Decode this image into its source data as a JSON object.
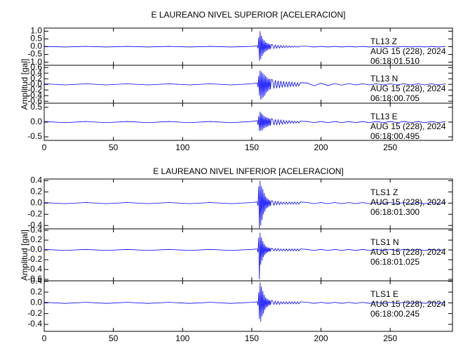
{
  "chart_data": [
    {
      "type": "line",
      "title": "E LAUREANO NIVEL SUPERIOR [ACELERACION]",
      "ylabel": "Amplitud [gal]",
      "xlim": [
        0,
        295
      ],
      "xticks": [
        0,
        50,
        100,
        150,
        200,
        250
      ],
      "x": [
        0,
        15,
        30,
        45,
        60,
        75,
        90,
        105,
        120,
        135,
        150,
        154,
        154.5,
        155,
        155.5,
        156,
        156.5,
        157,
        157.5,
        158,
        158.5,
        159,
        159.5,
        160,
        160.5,
        161,
        161.5,
        162,
        162.5,
        163,
        163.5,
        164,
        165,
        166,
        167,
        168,
        169,
        170,
        171,
        172,
        173,
        174,
        175,
        176,
        177,
        178,
        179,
        180,
        181,
        182,
        183,
        184,
        185,
        190,
        195,
        200,
        205,
        210,
        215,
        220,
        225,
        230,
        235,
        240,
        245,
        250,
        255,
        260,
        265,
        270,
        275,
        280,
        285,
        290
      ],
      "panels": [
        {
          "ylim": [
            -1.2,
            1.2
          ],
          "yticks": [
            {
              "value": 1,
              "label": "1.0"
            },
            0.5,
            {
              "value": 0,
              "label": "0.0"
            },
            -0.5,
            {
              "value": -1,
              "label": "-1.0"
            }
          ],
          "labels": [
            "TL13   Z",
            "AUG 15 (228), 2024",
            "06:18:01.510"
          ],
          "series": [
            {
              "color": "#0000ff",
              "values": [
                0.02,
                -0.02,
                0.02,
                -0.02,
                0.02,
                -0.02,
                0.02,
                -0.02,
                0.02,
                -0.02,
                0.02,
                0.05,
                -0.1,
                0.6,
                -0.9,
                1.0,
                -0.8,
                0.7,
                -0.6,
                0.5,
                -0.45,
                0.4,
                -0.35,
                0.3,
                -0.28,
                0.25,
                -0.22,
                0.2,
                -0.18,
                0.16,
                -0.15,
                0.14,
                0.13,
                -0.12,
                0.11,
                -0.1,
                0.09,
                -0.09,
                0.08,
                -0.07,
                0.07,
                -0.06,
                0.06,
                -0.05,
                0.05,
                -0.05,
                0.04,
                -0.04,
                0.04,
                -0.03,
                0.03,
                -0.03,
                0.03,
                0.03,
                -0.02,
                0.02,
                -0.02,
                0.02,
                -0.02,
                0.02,
                -0.02,
                0.02,
                -0.02,
                0.02,
                -0.02,
                0.02,
                -0.02,
                0.02,
                -0.02,
                0.02,
                -0.02,
                0.02,
                -0.02,
                0.02
              ]
            }
          ]
        },
        {
          "ylim": [
            -0.67,
            0.68
          ],
          "yticks": [
            0.6,
            0.4,
            0.2,
            {
              "value": 0,
              "label": "-0.0"
            },
            -0.2,
            -0.4,
            -0.6
          ],
          "labels": [
            "TL13   N",
            "AUG 15 (228), 2024",
            "06:18:00.705"
          ],
          "series": [
            {
              "color": "#0000ff",
              "values": [
                0.02,
                -0.02,
                0.02,
                -0.02,
                0.02,
                -0.02,
                0.02,
                -0.02,
                0.02,
                -0.02,
                0.02,
                0.05,
                -0.1,
                0.3,
                -0.4,
                0.5,
                -0.55,
                0.45,
                -0.5,
                0.4,
                -0.45,
                0.35,
                -0.4,
                0.3,
                -0.3,
                0.25,
                -0.25,
                0.2,
                -0.2,
                0.2,
                -0.18,
                0.17,
                0.16,
                -0.15,
                0.15,
                -0.14,
                0.13,
                -0.13,
                0.12,
                -0.11,
                0.11,
                -0.1,
                0.1,
                -0.09,
                0.09,
                -0.08,
                0.08,
                -0.07,
                0.07,
                -0.07,
                0.06,
                -0.06,
                0.06,
                0.05,
                -0.05,
                0.04,
                -0.04,
                0.03,
                -0.03,
                0.03,
                -0.02,
                0.02,
                -0.02,
                0.02,
                -0.02,
                0.02,
                -0.02,
                0.02,
                -0.02,
                0.02,
                -0.02,
                0.02,
                -0.02,
                0.02
              ]
            }
          ]
        },
        {
          "ylim": [
            -0.62,
            0.64
          ],
          "yticks": [
            0.5,
            {
              "value": 0,
              "label": "0.0"
            },
            -0.5
          ],
          "labels": [
            "TL13   E",
            "AUG 15 (228), 2024",
            "06:18:00.495"
          ],
          "series": [
            {
              "color": "#0000ff",
              "values": [
                0.02,
                -0.02,
                0.02,
                -0.02,
                0.02,
                -0.02,
                0.02,
                -0.02,
                0.02,
                -0.02,
                0.02,
                0.05,
                -0.1,
                0.2,
                -0.3,
                0.35,
                -0.3,
                0.3,
                -0.28,
                0.25,
                -0.22,
                0.2,
                -0.2,
                0.18,
                -0.17,
                0.16,
                -0.15,
                0.14,
                -0.13,
                0.12,
                -0.12,
                0.11,
                0.1,
                -0.1,
                0.09,
                -0.09,
                0.08,
                -0.08,
                0.07,
                -0.07,
                0.06,
                -0.06,
                0.05,
                -0.05,
                0.05,
                -0.04,
                0.04,
                -0.04,
                0.03,
                -0.03,
                0.03,
                -0.03,
                0.03,
                0.02,
                -0.02,
                0.02,
                -0.02,
                0.02,
                -0.02,
                0.02,
                -0.02,
                0.02,
                -0.02,
                0.02,
                -0.02,
                0.02,
                -0.02,
                0.02,
                -0.02,
                0.02,
                -0.02,
                0.02,
                -0.02,
                0.02
              ]
            }
          ]
        }
      ]
    },
    {
      "type": "line",
      "title": "E LAUREANO NIVEL INFERIOR [ACELERACION]",
      "ylabel": "Amplitud [gal]",
      "xlim": [
        0,
        295
      ],
      "xticks": [
        0,
        50,
        100,
        150,
        200,
        250
      ],
      "x": [
        0,
        15,
        30,
        45,
        60,
        75,
        90,
        105,
        120,
        135,
        150,
        154,
        154.5,
        155,
        155.5,
        156,
        156.5,
        157,
        157.5,
        158,
        158.5,
        159,
        159.5,
        160,
        160.5,
        161,
        161.5,
        162,
        162.5,
        163,
        163.5,
        164,
        165,
        166,
        167,
        168,
        169,
        170,
        171,
        172,
        173,
        174,
        175,
        176,
        177,
        178,
        179,
        180,
        181,
        182,
        183,
        184,
        185,
        190,
        195,
        200,
        205,
        210,
        215,
        220,
        225,
        230,
        235,
        240,
        245,
        250,
        255,
        260,
        265,
        270,
        275,
        280,
        285,
        290
      ],
      "panels": [
        {
          "ylim": [
            -0.46,
            0.43
          ],
          "yticks": [
            0.4,
            0.2,
            {
              "value": 0,
              "label": "0.0"
            },
            -0.2,
            -0.4
          ],
          "labels": [
            "TLS1   Z",
            "AUG 15 (228), 2024",
            "06:18:01.300"
          ],
          "series": [
            {
              "color": "#0000ff",
              "values": [
                0.01,
                -0.01,
                0.01,
                -0.01,
                0.01,
                -0.01,
                0.01,
                -0.01,
                0.01,
                -0.01,
                0.01,
                0.02,
                -0.05,
                0.3,
                -0.45,
                0.4,
                -0.4,
                0.3,
                -0.3,
                0.25,
                -0.2,
                0.18,
                -0.15,
                0.12,
                -0.1,
                0.09,
                -0.08,
                0.07,
                -0.06,
                0.05,
                -0.05,
                0.04,
                0.04,
                -0.04,
                0.03,
                -0.03,
                0.03,
                -0.03,
                0.02,
                -0.02,
                0.02,
                -0.02,
                0.02,
                -0.02,
                0.02,
                -0.02,
                0.02,
                -0.02,
                0.02,
                -0.02,
                0.02,
                -0.02,
                0.02,
                0.01,
                -0.01,
                0.01,
                -0.01,
                0.01,
                -0.01,
                0.01,
                -0.01,
                0.01,
                -0.01,
                0.01,
                -0.01,
                0.01,
                -0.01,
                0.01,
                -0.01,
                0.01,
                -0.01,
                0.01,
                -0.01,
                0.01
              ]
            }
          ]
        },
        {
          "ylim": [
            -0.63,
            0.43
          ],
          "yticks": [
            0.4,
            0.2,
            {
              "value": 0,
              "label": "-0.0"
            },
            -0.2,
            -0.4,
            -0.6
          ],
          "labels": [
            "TLS1   N",
            "AUG 15 (228), 2024",
            "06:18:01.025"
          ],
          "series": [
            {
              "color": "#0000ff",
              "values": [
                0.01,
                -0.01,
                0.01,
                -0.01,
                0.01,
                -0.01,
                0.01,
                -0.01,
                0.01,
                -0.01,
                0.01,
                0.02,
                -0.05,
                0.25,
                -0.6,
                0.35,
                -0.3,
                0.25,
                -0.22,
                0.18,
                -0.15,
                0.12,
                -0.1,
                0.08,
                -0.07,
                0.06,
                -0.05,
                0.05,
                -0.04,
                0.04,
                -0.03,
                0.03,
                0.03,
                -0.02,
                0.03,
                -0.02,
                0.03,
                -0.02,
                0.02,
                -0.02,
                0.02,
                -0.02,
                0.02,
                -0.02,
                0.02,
                -0.02,
                0.02,
                -0.02,
                0.02,
                -0.02,
                0.02,
                -0.02,
                0.02,
                0.01,
                -0.01,
                0.01,
                -0.01,
                0.01,
                -0.01,
                0.01,
                -0.01,
                0.01,
                -0.01,
                0.01,
                -0.01,
                0.01,
                -0.01,
                0.01,
                -0.01,
                0.01,
                -0.01,
                0.01,
                -0.01,
                0.01
              ]
            }
          ]
        },
        {
          "ylim": [
            -0.53,
            0.41
          ],
          "yticks": [
            0.4,
            0.2,
            {
              "value": 0,
              "label": "0.0"
            },
            -0.2,
            -0.4
          ],
          "labels": [
            "TLS1   E",
            "AUG 15 (228), 2024",
            "06:18:00.245"
          ],
          "series": [
            {
              "color": "#0000ff",
              "values": [
                0.01,
                -0.01,
                0.01,
                -0.01,
                0.01,
                -0.01,
                0.01,
                -0.01,
                0.01,
                -0.01,
                0.01,
                0.02,
                -0.05,
                0.2,
                -0.3,
                0.38,
                -0.35,
                0.3,
                -0.25,
                0.22,
                -0.2,
                0.15,
                -0.13,
                0.1,
                -0.09,
                0.08,
                -0.07,
                0.06,
                -0.05,
                0.05,
                -0.04,
                0.04,
                0.04,
                -0.03,
                0.03,
                -0.03,
                0.03,
                -0.03,
                0.02,
                -0.02,
                0.02,
                -0.02,
                0.02,
                -0.02,
                0.02,
                -0.02,
                0.02,
                -0.02,
                0.02,
                -0.02,
                0.02,
                -0.02,
                0.02,
                0.01,
                -0.01,
                0.01,
                -0.01,
                0.01,
                -0.01,
                0.01,
                -0.01,
                0.01,
                -0.01,
                0.01,
                -0.01,
                0.01,
                -0.01,
                0.01,
                -0.01,
                0.01,
                -0.01,
                0.01,
                -0.01,
                0.01
              ]
            }
          ]
        }
      ]
    }
  ]
}
